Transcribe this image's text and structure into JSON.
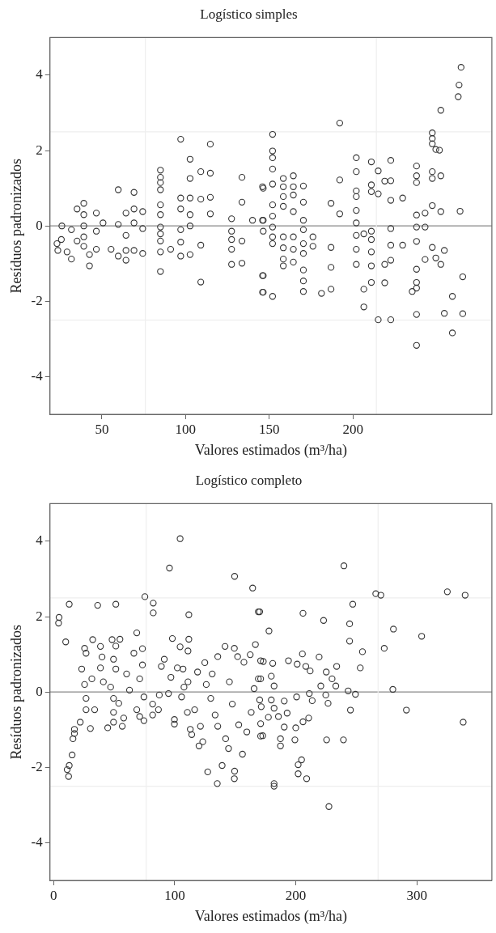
{
  "chart_data": [
    {
      "type": "scatter",
      "title": "Logístico simples",
      "xlabel": "Valores estimados (m³/ha)",
      "ylabel": "Resíduos padronizados",
      "xlim": [
        19,
        283
      ],
      "ylim": [
        -5,
        5
      ],
      "xticks": [
        50,
        100,
        150,
        200
      ],
      "yticks": [
        -4,
        -2,
        0,
        2,
        4
      ],
      "grid": false,
      "legend": false,
      "marker": "circle",
      "ref_lines": [
        {
          "axis": "y",
          "value": 0,
          "color": "#888888"
        },
        {
          "axis": "y",
          "value": 2.5,
          "color": "#eeeeee"
        },
        {
          "axis": "y",
          "value": -2.5,
          "color": "#eeeeee"
        },
        {
          "axis": "x",
          "value": 76,
          "color": "#eeeeee"
        },
        {
          "axis": "x",
          "value": 214,
          "color": "#eeeeee"
        }
      ],
      "series": [
        {
          "color": "#333333",
          "x": [
            26.1,
            25.8,
            23.2,
            23.7,
            29.2,
            31.8,
            31.8,
            39.2,
            39.2,
            39.2,
            39.2,
            39.2,
            35.2,
            35.2,
            42.6,
            42.6,
            46.7,
            46.7,
            46.7,
            50.7,
            55.5,
            59.8,
            59.8,
            59.8,
            64.4,
            64.4,
            64.4,
            64.4,
            69.2,
            69.2,
            69.2,
            69.2,
            74.4,
            74.4,
            74.4,
            85,
            85,
            85,
            85,
            85,
            85,
            85,
            85,
            85,
            85,
            85,
            91.1,
            97.1,
            97.1,
            97.1,
            97.1,
            97.1,
            97.1,
            102.7,
            102.7,
            102.7,
            102.7,
            102.7,
            102.7,
            109.1,
            109.1,
            109.1,
            109.1,
            114.8,
            114.8,
            114.8,
            114.8,
            127.5,
            127.5,
            127.5,
            127.5,
            127.5,
            133.7,
            133.7,
            133.7,
            133.7,
            140,
            146.4,
            146.4,
            146.4,
            146.4,
            146.4,
            146,
            146,
            146,
            146,
            152,
            152,
            152,
            152,
            152,
            152,
            152,
            152,
            152,
            152,
            152,
            158.4,
            158.4,
            158.4,
            158.4,
            158.4,
            158.4,
            158.4,
            158.4,
            164.4,
            164.4,
            164.4,
            164.4,
            164.4,
            164.4,
            164.4,
            170.4,
            170.4,
            170.4,
            170.4,
            170.4,
            170.4,
            170.4,
            170.4,
            170.4,
            176.1,
            176.1,
            181.2,
            186.9,
            186.9,
            186.9,
            186.9,
            192.1,
            192.1,
            192.1,
            202,
            202,
            202,
            202,
            202,
            202,
            202,
            202,
            202,
            206.5,
            206.5,
            206.5,
            211,
            211,
            211,
            211,
            211,
            211,
            211,
            211,
            215.1,
            215.1,
            215.1,
            219,
            219,
            219,
            222.6,
            222.6,
            222.6,
            222.6,
            222.6,
            222.6,
            222.6,
            229.7,
            229.7,
            238,
            238,
            238,
            238,
            238,
            238,
            238,
            238,
            238,
            235.4,
            238,
            238,
            243.1,
            243.1,
            243.1,
            247.4,
            247.4,
            247.4,
            249.5,
            251.7,
            247.4,
            247.4,
            252.5,
            247.4,
            252.5,
            247.4,
            249.5,
            252.5,
            254.6,
            252.5,
            254.6,
            259.4,
            259.4,
            262.9,
            263.4,
            264.6,
            264,
            265.6,
            265.6
          ],
          "values": [
            0,
            -0.36,
            -0.47,
            -0.65,
            -0.69,
            -0.88,
            -0.1,
            0.6,
            0.3,
            0,
            -0.29,
            -0.54,
            0.45,
            -0.4,
            -0.76,
            -1.06,
            0.34,
            -0.14,
            -0.62,
            0.08,
            -0.62,
            0.96,
            0.04,
            -0.8,
            0.34,
            -0.25,
            -0.65,
            -0.91,
            0.89,
            0.45,
            0.08,
            -0.65,
            0.38,
            -0.07,
            -0.73,
            1.48,
            1.29,
            1.15,
            0.96,
            0.56,
            0.3,
            -0.03,
            -0.21,
            -0.4,
            -0.69,
            -1.21,
            -0.62,
            2.3,
            0.74,
            0.45,
            -0.1,
            -0.43,
            -0.8,
            1.77,
            1.26,
            0.74,
            0.3,
            0,
            -0.76,
            1.44,
            0.71,
            -0.51,
            -1.49,
            2.17,
            1.4,
            0.76,
            0.32,
            0.19,
            -0.14,
            -0.36,
            -0.62,
            -1.02,
            1.29,
            0.63,
            -0.4,
            -0.99,
            0.15,
            0.15,
            1,
            -0.14,
            -1.32,
            -1.76,
            1.04,
            0.15,
            -1.32,
            -1.76,
            2.43,
            1.99,
            1.81,
            1.51,
            1.11,
            0.56,
            0.26,
            -0.03,
            -0.29,
            -0.47,
            -1.87,
            1.26,
            1.04,
            0.78,
            0.52,
            -0.29,
            -0.58,
            -0.88,
            -1.06,
            1.33,
            1.04,
            0.82,
            0.38,
            -0.29,
            -0.62,
            -0.96,
            1.06,
            0.63,
            0.15,
            -0.1,
            -0.47,
            -0.73,
            -1.17,
            -1.46,
            -1.74,
            -0.29,
            -0.54,
            -1.79,
            0.6,
            -0.57,
            -1.1,
            -1.68,
            2.73,
            1.22,
            0.32,
            1.81,
            1.44,
            0.93,
            0.78,
            0.41,
            0.08,
            -0.25,
            -0.62,
            -1.02,
            -2.15,
            -1.68,
            -0.21,
            1.7,
            1.09,
            0.91,
            -0.14,
            -0.36,
            -0.69,
            -1.06,
            -1.5,
            1.46,
            0.85,
            -2.49,
            1.19,
            -1.02,
            -1.51,
            1.74,
            1.2,
            0.68,
            -0.07,
            -0.51,
            -0.91,
            -2.49,
            0.74,
            -0.51,
            1.59,
            1.33,
            1.15,
            0.29,
            -0.03,
            -0.41,
            -1.15,
            -1.5,
            -1.65,
            -1.74,
            -2.35,
            -3.17,
            0.34,
            -0.03,
            -0.89,
            2.47,
            2.32,
            2.18,
            2.03,
            2.01,
            1.44,
            1.26,
            1.33,
            0.54,
            0.38,
            -0.57,
            -0.85,
            -1.02,
            -0.65,
            3.07,
            -2.32,
            -1.87,
            -2.84,
            3.43,
            3.74,
            4.21,
            0.39,
            -1.35,
            -2.33
          ]
        }
      ]
    },
    {
      "type": "scatter",
      "title": "Logístico completo",
      "xlabel": "Valores estimados (m³/ha)",
      "ylabel": "Resíduos padronizados",
      "xlim": [
        -3,
        362
      ],
      "ylim": [
        -5,
        5
      ],
      "xticks": [
        0,
        100,
        200,
        300
      ],
      "yticks": [
        -4,
        -2,
        0,
        2,
        4
      ],
      "grid": false,
      "legend": false,
      "marker": "circle",
      "ref_lines": [
        {
          "axis": "y",
          "value": 0,
          "color": "#888888"
        },
        {
          "axis": "y",
          "value": 2.5,
          "color": "#eeeeee"
        },
        {
          "axis": "y",
          "value": -2.5,
          "color": "#eeeeee"
        },
        {
          "axis": "x",
          "value": 76.5,
          "color": "#eeeeee"
        },
        {
          "axis": "x",
          "value": 268,
          "color": "#eeeeee"
        }
      ],
      "series": [
        {
          "color": "#333333",
          "x": [
            4.5,
            4.1,
            10,
            12.9,
            36.4,
            51.4,
            75.4,
            82.3,
            82.3,
            95.7,
            104.5,
            111.7,
            149.5,
            164.4,
            169.1,
            12.4,
            11.2,
            12.9,
            15.3,
            16,
            17.2,
            17.2,
            22,
            25.6,
            26.8,
            23.2,
            25.6,
            26.8,
            26.8,
            30.4,
            32.3,
            31.6,
            33.9,
            38.7,
            40,
            38.7,
            41.1,
            44.7,
            48.3,
            51.4,
            54.8,
            49.5,
            51.4,
            47.1,
            49.5,
            49.5,
            49.5,
            56.7,
            53.8,
            57.9,
            60.3,
            62.7,
            66.3,
            68.7,
            73.4,
            73.4,
            71.1,
            74.6,
            68.7,
            71.1,
            74.6,
            81.8,
            81.8,
            86.6,
            87.3,
            89,
            91.4,
            94.9,
            96.9,
            98.1,
            99.8,
            99.8,
            102.2,
            104.5,
            106.9,
            107.7,
            105.7,
            111.7,
            111,
            111,
            110.5,
            112.9,
            114.1,
            116.5,
            118.9,
            120.1,
            121.3,
            124.9,
            126.1,
            127.3,
            123.2,
            129.8,
            131,
            133.4,
            135.2,
            135.6,
            135.6,
            139.2,
            141.6,
            142.1,
            144.5,
            145.2,
            147.6,
            149.3,
            149.5,
            149.3,
            152,
            152.9,
            156,
            157.2,
            159.6,
            162.4,
            163.2,
            165.6,
            166.7,
            169.1,
            171.5,
            172.7,
            173.2,
            170.2,
            177.9,
            171,
            171,
            170.2,
            171,
            171,
            181,
            179.8,
            182.1,
            179.8,
            182.1,
            177.4,
            185.7,
            190.5,
            192.9,
            190.5,
            187.4,
            187.4,
            182.1,
            182.1,
            194,
            201.2,
            205.5,
            208.3,
            211.9,
            206,
            200.7,
            200,
            199.3,
            211.2,
            213.6,
            210.7,
            206,
            202,
            202,
            204.8,
            209,
            219.3,
            220.7,
            223,
            224.8,
            225.2,
            226.7,
            230,
            233.1,
            233.8,
            225.5,
            227.4,
            239.4,
            239.8,
            243.3,
            244.5,
            244.5,
            245.2,
            247.1,
            249.3,
            253.3,
            255.1,
            266.1,
            270.3,
            273.1,
            280.2,
            280.7,
            291.4,
            304,
            325.2,
            339.9,
            338.3
          ],
          "values": [
            1.98,
            1.83,
            1.33,
            2.33,
            2.3,
            2.33,
            2.53,
            2.36,
            2.1,
            3.29,
            4.07,
            2.05,
            3.07,
            2.76,
            2.13,
            -2.24,
            -2.06,
            -1.95,
            -1.67,
            -1.24,
            -1.1,
            -0.99,
            -0.8,
            1.16,
            1.03,
            0.61,
            0.2,
            -0.17,
            -0.47,
            -0.97,
            1.39,
            0.35,
            -0.47,
            1.21,
            0.93,
            0.64,
            0.27,
            -0.95,
            1.39,
            1.22,
            1.4,
            0.87,
            0.61,
            0.13,
            -0.17,
            -0.54,
            -0.8,
            -0.91,
            -0.3,
            -0.69,
            0.48,
            0.05,
            1.03,
            1.57,
            1.15,
            0.72,
            0.35,
            -0.13,
            -0.47,
            -0.65,
            -0.76,
            -0.32,
            -0.61,
            -0.47,
            -0.08,
            0.68,
            0.87,
            -0.04,
            0.39,
            1.42,
            -0.73,
            -0.85,
            0.64,
            1.2,
            0.61,
            0.13,
            -0.13,
            1.4,
            1.09,
            0.27,
            -0.54,
            -0.99,
            -1.13,
            -0.47,
            0.53,
            -1.43,
            -0.91,
            0.78,
            0.2,
            -2.12,
            -1.32,
            -0.17,
            0.48,
            -0.61,
            -2.43,
            0.94,
            -0.91,
            -1.95,
            1.21,
            -1.24,
            -1.5,
            0.27,
            -0.32,
            1.16,
            -2.1,
            -2.3,
            0.94,
            -0.87,
            -1.65,
            0.79,
            -1.06,
            0.99,
            -0.54,
            0.09,
            1.26,
            0.35,
            -0.39,
            -1.16,
            0.81,
            2.13,
            1.62,
            0.83,
            0.35,
            -0.21,
            -0.84,
            -1.17,
            0.76,
            0.42,
            0.16,
            -0.21,
            -0.43,
            -0.67,
            -0.65,
            -0.24,
            -0.56,
            -0.93,
            -1.24,
            -1.43,
            -2.43,
            -2.5,
            0.83,
            0.74,
            1.01,
            0.68,
            0.56,
            2.09,
            -0.13,
            -0.95,
            -1.27,
            -0.04,
            -0.23,
            -0.69,
            -0.79,
            -1.93,
            -2.17,
            -1.8,
            -2.3,
            0.93,
            0.16,
            1.9,
            -0.08,
            0.53,
            -0.3,
            0.35,
            0.16,
            0.68,
            -1.27,
            -3.04,
            -1.27,
            3.35,
            0.03,
            1.35,
            1.81,
            -0.48,
            2.33,
            -0.06,
            0.64,
            1.07,
            2.61,
            2.57,
            1.16,
            0.07,
            1.67,
            -0.48,
            1.48,
            2.66,
            2.57,
            -0.8
          ]
        }
      ]
    }
  ]
}
